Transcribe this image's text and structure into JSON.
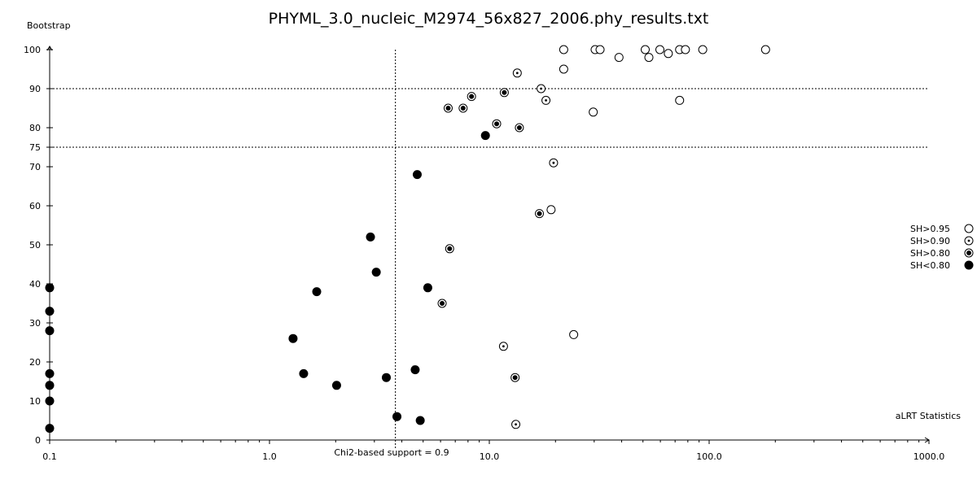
{
  "chart_data": {
    "type": "scatter",
    "title": "PHYML_3.0_nucleic_M2974_56x827_2006.phy_results.txt",
    "xlabel": "aLRT Statistics",
    "ylabel": "Bootstrap",
    "x_scale": "log",
    "xlim": [
      0.1,
      1000.0
    ],
    "ylim": [
      0,
      100
    ],
    "x_ticks": [
      "0.1",
      "1.0",
      "10.0",
      "100.0",
      "1000.0"
    ],
    "y_ticks": [
      "0",
      "10",
      "20",
      "30",
      "40",
      "50",
      "60",
      "70",
      "75",
      "80",
      "90",
      "100"
    ],
    "grid": false,
    "reference_lines": {
      "horizontal": [
        90,
        75
      ],
      "vertical": {
        "x": 3.74,
        "label": "Chi2-based support = 0.9"
      }
    },
    "legend_position": "right",
    "series": [
      {
        "name": "SH>0.95",
        "marker": "open-circle",
        "points": [
          [
            21.8,
            100
          ],
          [
            30.3,
            100
          ],
          [
            31.9,
            100
          ],
          [
            51.2,
            100
          ],
          [
            59.7,
            100
          ],
          [
            73.4,
            100
          ],
          [
            78.0,
            100
          ],
          [
            93.5,
            100
          ],
          [
            180.6,
            100
          ],
          [
            38.9,
            98
          ],
          [
            53.2,
            98
          ],
          [
            65.2,
            99
          ],
          [
            21.8,
            95
          ],
          [
            29.7,
            84
          ],
          [
            73.4,
            87
          ],
          [
            19.1,
            59
          ],
          [
            24.2,
            27
          ]
        ]
      },
      {
        "name": "SH>0.90",
        "marker": "dot-circle",
        "points": [
          [
            13.4,
            94
          ],
          [
            17.2,
            90
          ],
          [
            18.1,
            87
          ],
          [
            19.6,
            71
          ],
          [
            11.6,
            24
          ],
          [
            13.2,
            4
          ]
        ]
      },
      {
        "name": "SH>0.80",
        "marker": "bullseye",
        "points": [
          [
            6.5,
            85
          ],
          [
            7.6,
            85
          ],
          [
            8.3,
            88
          ],
          [
            11.7,
            89
          ],
          [
            10.8,
            81
          ],
          [
            13.7,
            80
          ],
          [
            16.9,
            58
          ],
          [
            6.6,
            49
          ],
          [
            6.1,
            35
          ],
          [
            13.1,
            16
          ]
        ]
      },
      {
        "name": "SH<0.80",
        "marker": "filled-circle",
        "points": [
          [
            9.6,
            78
          ],
          [
            4.7,
            68
          ],
          [
            2.88,
            52
          ],
          [
            3.06,
            43
          ],
          [
            5.25,
            39
          ],
          [
            1.64,
            38
          ],
          [
            1.28,
            26
          ],
          [
            1.43,
            17
          ],
          [
            2.02,
            14
          ],
          [
            3.4,
            16
          ],
          [
            4.6,
            18
          ],
          [
            3.8,
            6
          ],
          [
            4.85,
            5
          ],
          [
            0.1,
            39
          ],
          [
            0.1,
            33
          ],
          [
            0.1,
            28
          ],
          [
            0.1,
            17
          ],
          [
            0.1,
            14
          ],
          [
            0.1,
            10
          ],
          [
            0.1,
            3
          ]
        ]
      }
    ]
  }
}
